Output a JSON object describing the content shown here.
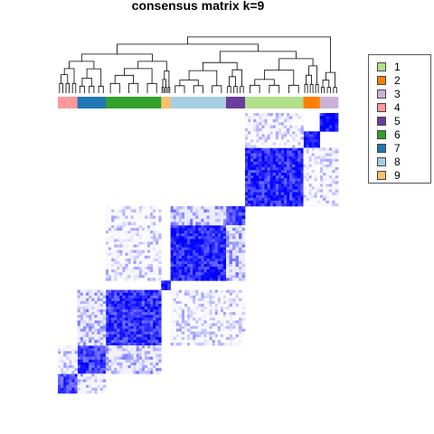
{
  "chart_data": {
    "type": "heatmap",
    "title": "consensus matrix k=9",
    "scale": {
      "low": "#ffffff",
      "high": "#0000ff",
      "range": [
        0,
        1
      ]
    },
    "class_colors": {
      "1": "#b2df8a",
      "2": "#ff7f00",
      "3": "#cab2d6",
      "4": "#fb9a99",
      "5": "#6a3d9a",
      "6": "#33a02c",
      "7": "#1f78b4",
      "8": "#a6cee3",
      "9": "#fdbf6f"
    },
    "column_annotation": [
      {
        "class": "4",
        "fraction": 0.067
      },
      {
        "class": "7",
        "fraction": 0.097
      },
      {
        "class": "6",
        "fraction": 0.19
      },
      {
        "class": "9",
        "fraction": 0.032
      },
      {
        "class": "8",
        "fraction": 0.19
      },
      {
        "class": "5",
        "fraction": 0.065
      },
      {
        "class": "1",
        "fraction": 0.2
      },
      {
        "class": "2",
        "fraction": 0.056
      },
      {
        "class": "3",
        "fraction": 0.063
      }
    ],
    "blocks": [
      {
        "row": "3",
        "col": "3",
        "value": 0.95
      },
      {
        "row": "2",
        "col": "2",
        "value": 0.9
      },
      {
        "row": "1",
        "col": "1",
        "value": 0.82
      },
      {
        "row": "5",
        "col": "5",
        "value": 0.75
      },
      {
        "row": "8",
        "col": "8",
        "value": 0.85
      },
      {
        "row": "9",
        "col": "9",
        "value": 0.95
      },
      {
        "row": "6",
        "col": "6",
        "value": 0.78
      },
      {
        "row": "7",
        "col": "7",
        "value": 0.75
      },
      {
        "row": "4",
        "col": "4",
        "value": 0.7
      },
      {
        "row": "1",
        "col": "3",
        "value": 0.15
      },
      {
        "row": "3",
        "col": "1",
        "value": 0.15
      },
      {
        "row": "1",
        "col": "2",
        "value": 0.12
      },
      {
        "row": "2",
        "col": "1",
        "value": 0.12
      },
      {
        "row": "5",
        "col": "8",
        "value": 0.35
      },
      {
        "row": "8",
        "col": "5",
        "value": 0.35
      },
      {
        "row": "8",
        "col": "6",
        "value": 0.15
      },
      {
        "row": "6",
        "col": "8",
        "value": 0.15
      },
      {
        "row": "7",
        "col": "6",
        "value": 0.3
      },
      {
        "row": "6",
        "col": "7",
        "value": 0.3
      },
      {
        "row": "4",
        "col": "7",
        "value": 0.2
      },
      {
        "row": "7",
        "col": "4",
        "value": 0.2
      },
      {
        "row": "5",
        "col": "6",
        "value": 0.12
      },
      {
        "row": "6",
        "col": "5",
        "value": 0.12
      }
    ],
    "legend": {
      "position": "right",
      "entries": [
        {
          "label": "1",
          "color": "#b2df8a"
        },
        {
          "label": "2",
          "color": "#ff7f00"
        },
        {
          "label": "3",
          "color": "#cab2d6"
        },
        {
          "label": "4",
          "color": "#fb9a99"
        },
        {
          "label": "5",
          "color": "#6a3d9a"
        },
        {
          "label": "6",
          "color": "#33a02c"
        },
        {
          "label": "7",
          "color": "#1f78b4"
        },
        {
          "label": "8",
          "color": "#a6cee3"
        },
        {
          "label": "9",
          "color": "#fdbf6f"
        }
      ]
    },
    "dendrogram": "top",
    "grid": false
  }
}
